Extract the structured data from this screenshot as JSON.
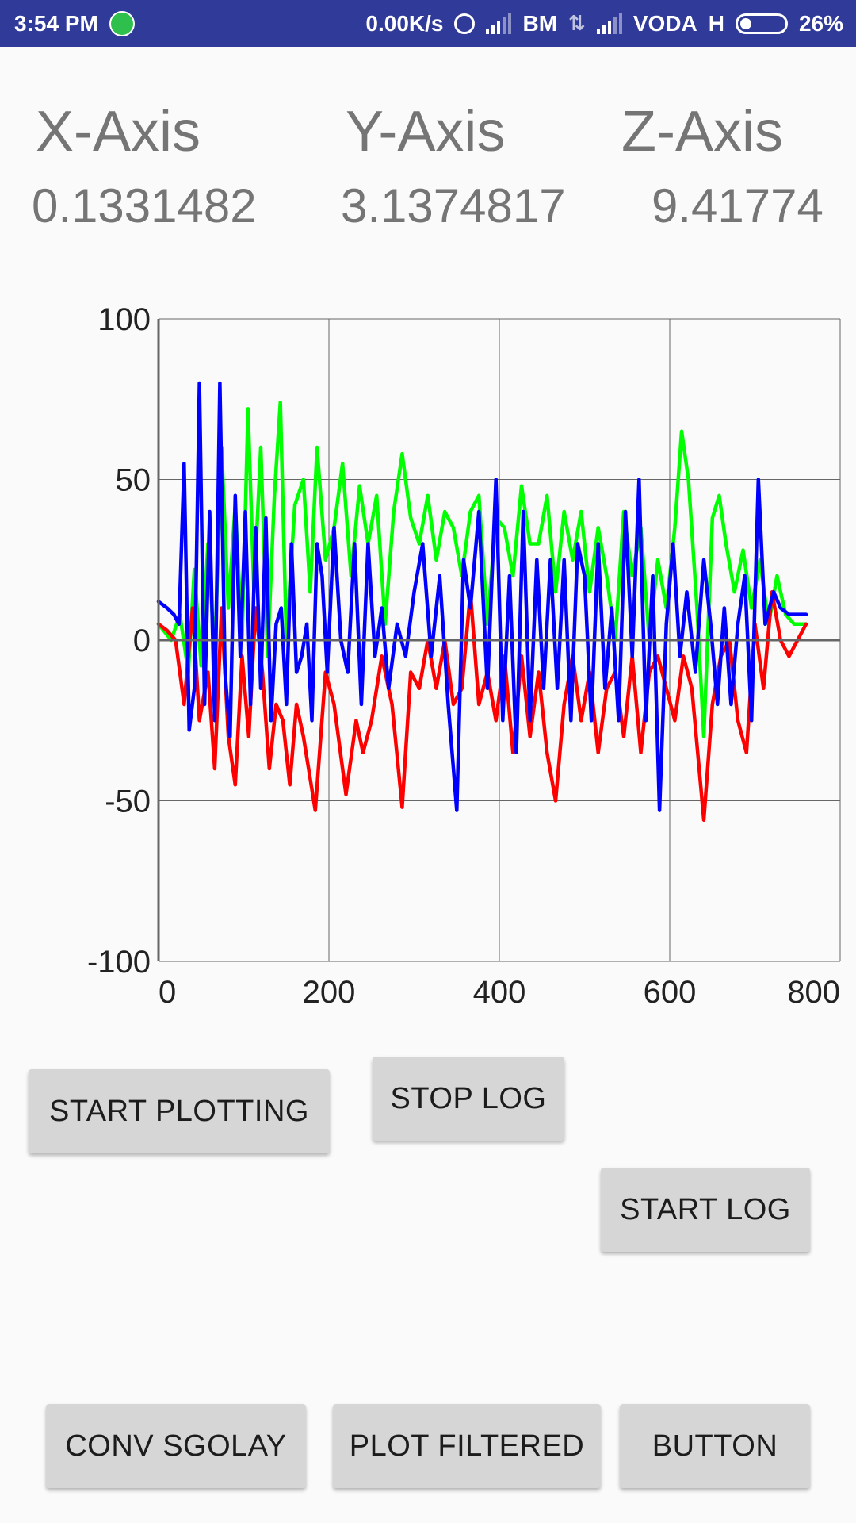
{
  "status_bar": {
    "time": "3:54 PM",
    "net_speed": "0.00K/s",
    "carrier1": "BM",
    "carrier2": "VODA",
    "network_type": "H",
    "battery": "26%"
  },
  "readouts": {
    "x_label": "X-Axis",
    "y_label": "Y-Axis",
    "z_label": "Z-Axis",
    "x_value": "0.1331482",
    "y_value": "3.1374817",
    "z_value": "9.41774"
  },
  "chart_data": {
    "type": "line",
    "title": "",
    "xlabel": "",
    "ylabel": "",
    "xlim": [
      0,
      800
    ],
    "ylim": [
      -100,
      100
    ],
    "x_ticks": [
      "0",
      "200",
      "400",
      "600",
      "800"
    ],
    "y_ticks": [
      "100",
      "50",
      "0",
      "-50",
      "-100"
    ],
    "grid": true,
    "series": [
      {
        "color": "#00ff00",
        "points": [
          [
            0,
            5
          ],
          [
            15,
            0
          ],
          [
            25,
            8
          ],
          [
            35,
            -10
          ],
          [
            42,
            22
          ],
          [
            50,
            -8
          ],
          [
            58,
            30
          ],
          [
            66,
            -5
          ],
          [
            74,
            60
          ],
          [
            82,
            10
          ],
          [
            90,
            42
          ],
          [
            98,
            0
          ],
          [
            105,
            72
          ],
          [
            112,
            15
          ],
          [
            120,
            60
          ],
          [
            128,
            -5
          ],
          [
            136,
            45
          ],
          [
            143,
            74
          ],
          [
            150,
            0
          ],
          [
            160,
            42
          ],
          [
            170,
            50
          ],
          [
            178,
            15
          ],
          [
            186,
            60
          ],
          [
            196,
            25
          ],
          [
            206,
            35
          ],
          [
            216,
            55
          ],
          [
            226,
            20
          ],
          [
            236,
            48
          ],
          [
            246,
            30
          ],
          [
            256,
            45
          ],
          [
            266,
            5
          ],
          [
            276,
            40
          ],
          [
            286,
            58
          ],
          [
            296,
            38
          ],
          [
            306,
            30
          ],
          [
            316,
            45
          ],
          [
            326,
            25
          ],
          [
            336,
            40
          ],
          [
            346,
            35
          ],
          [
            356,
            20
          ],
          [
            366,
            40
          ],
          [
            376,
            45
          ],
          [
            386,
            5
          ],
          [
            396,
            38
          ],
          [
            406,
            35
          ],
          [
            416,
            20
          ],
          [
            426,
            48
          ],
          [
            436,
            30
          ],
          [
            446,
            30
          ],
          [
            456,
            45
          ],
          [
            466,
            15
          ],
          [
            476,
            40
          ],
          [
            486,
            25
          ],
          [
            496,
            40
          ],
          [
            506,
            15
          ],
          [
            516,
            35
          ],
          [
            526,
            20
          ],
          [
            536,
            0
          ],
          [
            546,
            40
          ],
          [
            556,
            20
          ],
          [
            566,
            35
          ],
          [
            576,
            0
          ],
          [
            586,
            25
          ],
          [
            596,
            10
          ],
          [
            606,
            35
          ],
          [
            614,
            65
          ],
          [
            622,
            50
          ],
          [
            632,
            10
          ],
          [
            640,
            -30
          ],
          [
            650,
            38
          ],
          [
            658,
            45
          ],
          [
            666,
            30
          ],
          [
            676,
            15
          ],
          [
            686,
            28
          ],
          [
            696,
            10
          ],
          [
            706,
            25
          ],
          [
            716,
            5
          ],
          [
            726,
            20
          ],
          [
            736,
            8
          ],
          [
            746,
            5
          ],
          [
            760,
            5
          ]
        ]
      },
      {
        "color": "#ff0000",
        "points": [
          [
            0,
            5
          ],
          [
            10,
            3
          ],
          [
            20,
            0
          ],
          [
            30,
            -20
          ],
          [
            40,
            10
          ],
          [
            48,
            -25
          ],
          [
            58,
            -10
          ],
          [
            66,
            -40
          ],
          [
            74,
            10
          ],
          [
            82,
            -30
          ],
          [
            90,
            -45
          ],
          [
            98,
            -5
          ],
          [
            106,
            -30
          ],
          [
            114,
            10
          ],
          [
            122,
            -10
          ],
          [
            130,
            -40
          ],
          [
            138,
            -20
          ],
          [
            146,
            -25
          ],
          [
            154,
            -45
          ],
          [
            162,
            -20
          ],
          [
            170,
            -30
          ],
          [
            184,
            -53
          ],
          [
            196,
            -10
          ],
          [
            206,
            -20
          ],
          [
            220,
            -48
          ],
          [
            232,
            -25
          ],
          [
            240,
            -35
          ],
          [
            250,
            -25
          ],
          [
            262,
            -5
          ],
          [
            274,
            -20
          ],
          [
            286,
            -52
          ],
          [
            296,
            -10
          ],
          [
            306,
            -15
          ],
          [
            316,
            0
          ],
          [
            326,
            -15
          ],
          [
            336,
            0
          ],
          [
            346,
            -20
          ],
          [
            356,
            -15
          ],
          [
            366,
            15
          ],
          [
            376,
            -20
          ],
          [
            386,
            -10
          ],
          [
            396,
            -25
          ],
          [
            406,
            -5
          ],
          [
            416,
            -35
          ],
          [
            426,
            -5
          ],
          [
            436,
            -30
          ],
          [
            446,
            -10
          ],
          [
            456,
            -35
          ],
          [
            466,
            -50
          ],
          [
            476,
            -20
          ],
          [
            486,
            -5
          ],
          [
            496,
            -25
          ],
          [
            506,
            -10
          ],
          [
            516,
            -35
          ],
          [
            526,
            -15
          ],
          [
            536,
            -10
          ],
          [
            546,
            -30
          ],
          [
            556,
            -5
          ],
          [
            566,
            -35
          ],
          [
            576,
            -10
          ],
          [
            586,
            -5
          ],
          [
            596,
            -15
          ],
          [
            606,
            -25
          ],
          [
            616,
            -5
          ],
          [
            626,
            -15
          ],
          [
            640,
            -56
          ],
          [
            650,
            -20
          ],
          [
            660,
            -5
          ],
          [
            670,
            0
          ],
          [
            680,
            -25
          ],
          [
            690,
            -35
          ],
          [
            700,
            5
          ],
          [
            710,
            -15
          ],
          [
            720,
            15
          ],
          [
            730,
            0
          ],
          [
            740,
            -5
          ],
          [
            760,
            5
          ]
        ]
      },
      {
        "color": "#0000ff",
        "points": [
          [
            0,
            12
          ],
          [
            10,
            10
          ],
          [
            18,
            8
          ],
          [
            24,
            5
          ],
          [
            30,
            55
          ],
          [
            36,
            -28
          ],
          [
            42,
            -15
          ],
          [
            48,
            80
          ],
          [
            54,
            -20
          ],
          [
            60,
            40
          ],
          [
            66,
            -25
          ],
          [
            72,
            80
          ],
          [
            78,
            -10
          ],
          [
            84,
            -30
          ],
          [
            90,
            45
          ],
          [
            96,
            -5
          ],
          [
            102,
            40
          ],
          [
            108,
            -20
          ],
          [
            114,
            35
          ],
          [
            120,
            -15
          ],
          [
            126,
            38
          ],
          [
            132,
            -25
          ],
          [
            138,
            5
          ],
          [
            144,
            10
          ],
          [
            150,
            -20
          ],
          [
            156,
            30
          ],
          [
            162,
            -10
          ],
          [
            168,
            -5
          ],
          [
            174,
            5
          ],
          [
            180,
            -25
          ],
          [
            186,
            30
          ],
          [
            192,
            20
          ],
          [
            198,
            -10
          ],
          [
            206,
            35
          ],
          [
            214,
            0
          ],
          [
            222,
            -10
          ],
          [
            230,
            30
          ],
          [
            238,
            -20
          ],
          [
            246,
            30
          ],
          [
            254,
            -5
          ],
          [
            262,
            10
          ],
          [
            270,
            -15
          ],
          [
            280,
            5
          ],
          [
            290,
            -5
          ],
          [
            300,
            15
          ],
          [
            310,
            30
          ],
          [
            320,
            -5
          ],
          [
            330,
            20
          ],
          [
            340,
            -20
          ],
          [
            350,
            -53
          ],
          [
            358,
            25
          ],
          [
            366,
            10
          ],
          [
            376,
            40
          ],
          [
            386,
            -15
          ],
          [
            396,
            50
          ],
          [
            404,
            -25
          ],
          [
            412,
            20
          ],
          [
            420,
            -35
          ],
          [
            428,
            40
          ],
          [
            436,
            -25
          ],
          [
            444,
            25
          ],
          [
            452,
            -15
          ],
          [
            460,
            25
          ],
          [
            468,
            -15
          ],
          [
            476,
            25
          ],
          [
            484,
            -25
          ],
          [
            492,
            30
          ],
          [
            500,
            20
          ],
          [
            508,
            -25
          ],
          [
            516,
            30
          ],
          [
            524,
            -15
          ],
          [
            532,
            10
          ],
          [
            540,
            -25
          ],
          [
            548,
            40
          ],
          [
            556,
            -5
          ],
          [
            564,
            50
          ],
          [
            572,
            -25
          ],
          [
            580,
            20
          ],
          [
            588,
            -53
          ],
          [
            596,
            5
          ],
          [
            604,
            30
          ],
          [
            612,
            -5
          ],
          [
            620,
            15
          ],
          [
            630,
            -10
          ],
          [
            640,
            25
          ],
          [
            648,
            5
          ],
          [
            656,
            -20
          ],
          [
            664,
            10
          ],
          [
            672,
            -20
          ],
          [
            680,
            5
          ],
          [
            688,
            20
          ],
          [
            696,
            -25
          ],
          [
            704,
            50
          ],
          [
            712,
            5
          ],
          [
            722,
            15
          ],
          [
            730,
            10
          ],
          [
            740,
            8
          ],
          [
            760,
            8
          ]
        ]
      }
    ]
  },
  "buttons": {
    "start_plotting": "START PLOTTING",
    "stop_log": "STOP LOG",
    "start_log": "START LOG",
    "conv_sgolay": "CONV SGOLAY",
    "plot_filtered": "PLOT FILTERED",
    "button": "BUTTON"
  }
}
